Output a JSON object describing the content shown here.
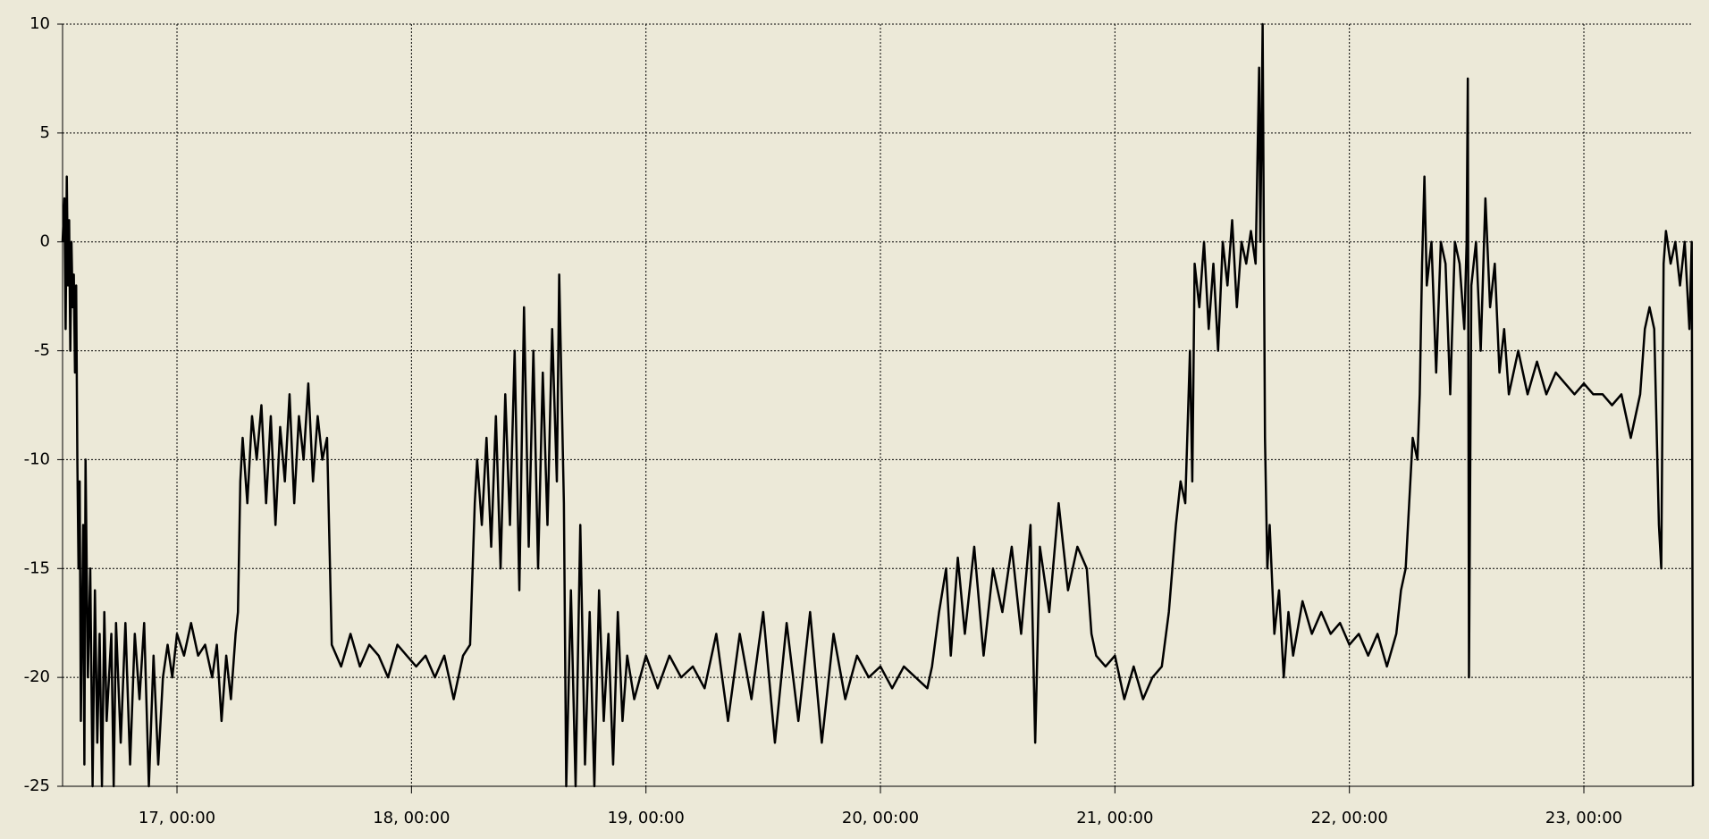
{
  "chart_data": {
    "type": "line",
    "x": [
      16.512,
      16.52,
      16.525,
      16.53,
      16.535,
      16.54,
      16.545,
      16.55,
      16.555,
      16.56,
      16.565,
      16.57,
      16.575,
      16.58,
      16.585,
      16.59,
      16.6,
      16.605,
      16.61,
      16.62,
      16.63,
      16.64,
      16.65,
      16.66,
      16.67,
      16.68,
      16.69,
      16.7,
      16.72,
      16.73,
      16.74,
      16.76,
      16.78,
      16.8,
      16.82,
      16.84,
      16.86,
      16.88,
      16.9,
      16.92,
      16.94,
      16.96,
      16.98,
      17.0,
      17.03,
      17.06,
      17.09,
      17.12,
      17.15,
      17.17,
      17.19,
      17.21,
      17.23,
      17.25,
      17.26,
      17.27,
      17.28,
      17.3,
      17.32,
      17.34,
      17.36,
      17.38,
      17.4,
      17.42,
      17.44,
      17.46,
      17.48,
      17.5,
      17.52,
      17.54,
      17.56,
      17.58,
      17.6,
      17.62,
      17.64,
      17.66,
      17.7,
      17.74,
      17.78,
      17.82,
      17.86,
      17.9,
      17.94,
      17.98,
      18.02,
      18.06,
      18.1,
      18.14,
      18.18,
      18.22,
      18.25,
      18.27,
      18.28,
      18.3,
      18.32,
      18.34,
      18.36,
      18.38,
      18.4,
      18.42,
      18.44,
      18.46,
      18.48,
      18.5,
      18.52,
      18.54,
      18.56,
      18.58,
      18.6,
      18.62,
      18.63,
      18.65,
      18.66,
      18.68,
      18.7,
      18.72,
      18.74,
      18.76,
      18.78,
      18.8,
      18.82,
      18.84,
      18.86,
      18.88,
      18.9,
      18.92,
      18.95,
      19.0,
      19.05,
      19.1,
      19.15,
      19.2,
      19.25,
      19.3,
      19.35,
      19.4,
      19.45,
      19.5,
      19.55,
      19.6,
      19.65,
      19.7,
      19.75,
      19.8,
      19.85,
      19.9,
      19.95,
      20.0,
      20.05,
      20.1,
      20.15,
      20.2,
      20.22,
      20.25,
      20.28,
      20.3,
      20.33,
      20.36,
      20.4,
      20.44,
      20.48,
      20.52,
      20.56,
      20.6,
      20.64,
      20.66,
      20.68,
      20.72,
      20.76,
      20.8,
      20.84,
      20.88,
      20.9,
      20.92,
      20.96,
      21.0,
      21.04,
      21.08,
      21.12,
      21.16,
      21.2,
      21.23,
      21.26,
      21.28,
      21.3,
      21.32,
      21.33,
      21.34,
      21.36,
      21.38,
      21.4,
      21.42,
      21.44,
      21.46,
      21.48,
      21.5,
      21.52,
      21.54,
      21.56,
      21.58,
      21.6,
      21.615,
      21.62,
      21.63,
      21.64,
      21.65,
      21.66,
      21.68,
      21.7,
      21.72,
      21.74,
      21.76,
      21.8,
      21.84,
      21.88,
      21.92,
      21.96,
      22.0,
      22.04,
      22.08,
      22.12,
      22.16,
      22.2,
      22.22,
      22.24,
      22.27,
      22.29,
      22.3,
      22.31,
      22.32,
      22.33,
      22.35,
      22.37,
      22.39,
      22.41,
      22.43,
      22.45,
      22.47,
      22.49,
      22.5,
      22.505,
      22.51,
      22.52,
      22.54,
      22.56,
      22.58,
      22.6,
      22.62,
      22.64,
      22.66,
      22.68,
      22.72,
      22.76,
      22.8,
      22.84,
      22.88,
      22.92,
      22.96,
      23.0,
      23.04,
      23.08,
      23.12,
      23.16,
      23.2,
      23.24,
      23.26,
      23.28,
      23.3,
      23.32,
      23.33,
      23.34,
      23.35,
      23.37,
      23.39,
      23.41,
      23.43,
      23.45,
      23.46,
      23.465
    ],
    "values": [
      0,
      2,
      -4,
      3,
      -2,
      1,
      -5,
      0,
      -3,
      -1.5,
      -6,
      -2,
      -10,
      -15,
      -11,
      -22,
      -13,
      -24,
      -10,
      -20,
      -15,
      -25,
      -16,
      -23,
      -18,
      -25,
      -17,
      -22,
      -18,
      -25,
      -17.5,
      -23,
      -17.5,
      -24,
      -18,
      -21,
      -17.5,
      -25,
      -19,
      -24,
      -20,
      -18.5,
      -20,
      -18,
      -19,
      -17.5,
      -19,
      -18.5,
      -20,
      -18.5,
      -22,
      -19,
      -21,
      -18,
      -17,
      -11,
      -9,
      -12,
      -8,
      -10,
      -7.5,
      -12,
      -8,
      -13,
      -8.5,
      -11,
      -7,
      -12,
      -8,
      -10,
      -6.5,
      -11,
      -8,
      -10,
      -9,
      -18.5,
      -19.5,
      -18,
      -19.5,
      -18.5,
      -19,
      -20,
      -18.5,
      -19,
      -19.5,
      -19,
      -20,
      -19,
      -21,
      -19,
      -18.5,
      -12,
      -10,
      -13,
      -9,
      -14,
      -8,
      -15,
      -7,
      -13,
      -5,
      -16,
      -3,
      -14,
      -5,
      -15,
      -6,
      -13,
      -4,
      -11,
      -1.5,
      -12,
      -25,
      -16,
      -25,
      -13,
      -24,
      -17,
      -25,
      -16,
      -22,
      -18,
      -24,
      -17,
      -22,
      -19,
      -21,
      -19,
      -20.5,
      -19,
      -20,
      -19.5,
      -20.5,
      -18,
      -22,
      -18,
      -21,
      -17,
      -23,
      -17.5,
      -22,
      -17,
      -23,
      -18,
      -21,
      -19,
      -20,
      -19.5,
      -20.5,
      -19.5,
      -20,
      -20.5,
      -19.5,
      -17,
      -15,
      -19,
      -14.5,
      -18,
      -14,
      -19,
      -15,
      -17,
      -14,
      -18,
      -13,
      -23,
      -14,
      -17,
      -12,
      -16,
      -14,
      -15,
      -18,
      -19,
      -19.5,
      -19,
      -21,
      -19.5,
      -21,
      -20,
      -19.5,
      -17,
      -13,
      -11,
      -12,
      -5,
      -11,
      -1,
      -3,
      0,
      -4,
      -1,
      -5,
      0,
      -2,
      1,
      -3,
      0,
      -1,
      0.5,
      -1,
      8,
      0,
      10,
      -9,
      -15,
      -13,
      -18,
      -16,
      -20,
      -17,
      -19,
      -16.5,
      -18,
      -17,
      -18,
      -17.5,
      -18.5,
      -18,
      -19,
      -18,
      -19.5,
      -18,
      -16,
      -15,
      -9,
      -10,
      -7,
      -1,
      3,
      -2,
      0,
      -6,
      0,
      -1,
      -7,
      0,
      -1,
      -4,
      0,
      7.5,
      -20,
      -2,
      0,
      -5,
      2,
      -3,
      -1,
      -6,
      -4,
      -7,
      -5,
      -7,
      -5.5,
      -7,
      -6,
      -6.5,
      -7,
      -6.5,
      -7,
      -7,
      -7.5,
      -7,
      -9,
      -7,
      -4,
      -3,
      -4,
      -13,
      -15,
      -1,
      0.5,
      -1,
      0,
      -2,
      0,
      -4,
      0,
      -25
    ],
    "color": "#000000",
    "xlim": [
      16.512,
      23.465
    ],
    "xticks": [
      {
        "value": 17,
        "label": "17, 00:00"
      },
      {
        "value": 18,
        "label": "18, 00:00"
      },
      {
        "value": 19,
        "label": "19, 00:00"
      },
      {
        "value": 20,
        "label": "20, 00:00"
      },
      {
        "value": 21,
        "label": "21, 00:00"
      },
      {
        "value": 22,
        "label": "22, 00:00"
      },
      {
        "value": 23,
        "label": "23, 00:00"
      }
    ],
    "ylim": [
      -25,
      10
    ],
    "yticks": [
      -25,
      -20,
      -15,
      -10,
      -5,
      0,
      5,
      10
    ],
    "grid": true
  }
}
